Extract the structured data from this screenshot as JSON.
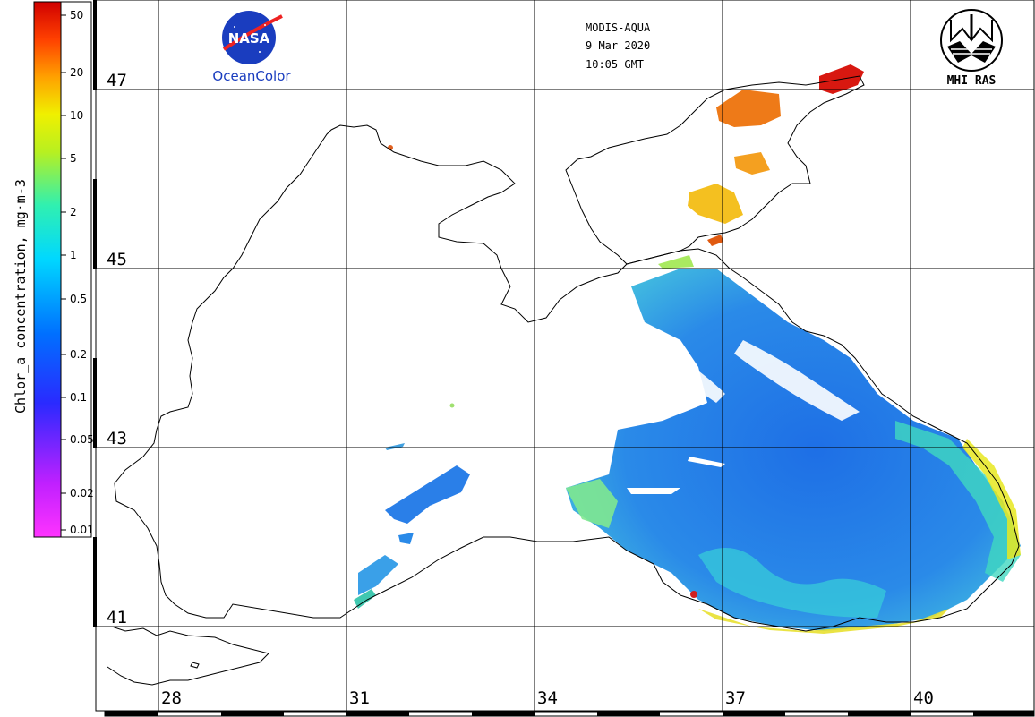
{
  "header": {
    "sensor": "MODIS-AQUA",
    "date": "9 Mar 2020",
    "time": "10:05 GMT"
  },
  "logos": {
    "nasa_text": "NASA",
    "oceancolor_text": "OceanColor",
    "mhi_text": "MHI RAS"
  },
  "colorbar": {
    "title": "Chlor_a concentration, mg·m-3",
    "ticks": [
      "50",
      "20",
      "10",
      "5",
      "2",
      "1",
      "0.5",
      "0.2",
      "0.1",
      "0.05",
      "0.02",
      "0.01"
    ]
  },
  "grid": {
    "latitudes": [
      "47",
      "45",
      "43",
      "41"
    ],
    "longitudes": [
      "28",
      "31",
      "34",
      "37",
      "40"
    ]
  },
  "colors": {
    "low": "#ff33ff",
    "mid": "#1e7fe6",
    "high": "#ee1111",
    "grid": "#000000"
  }
}
